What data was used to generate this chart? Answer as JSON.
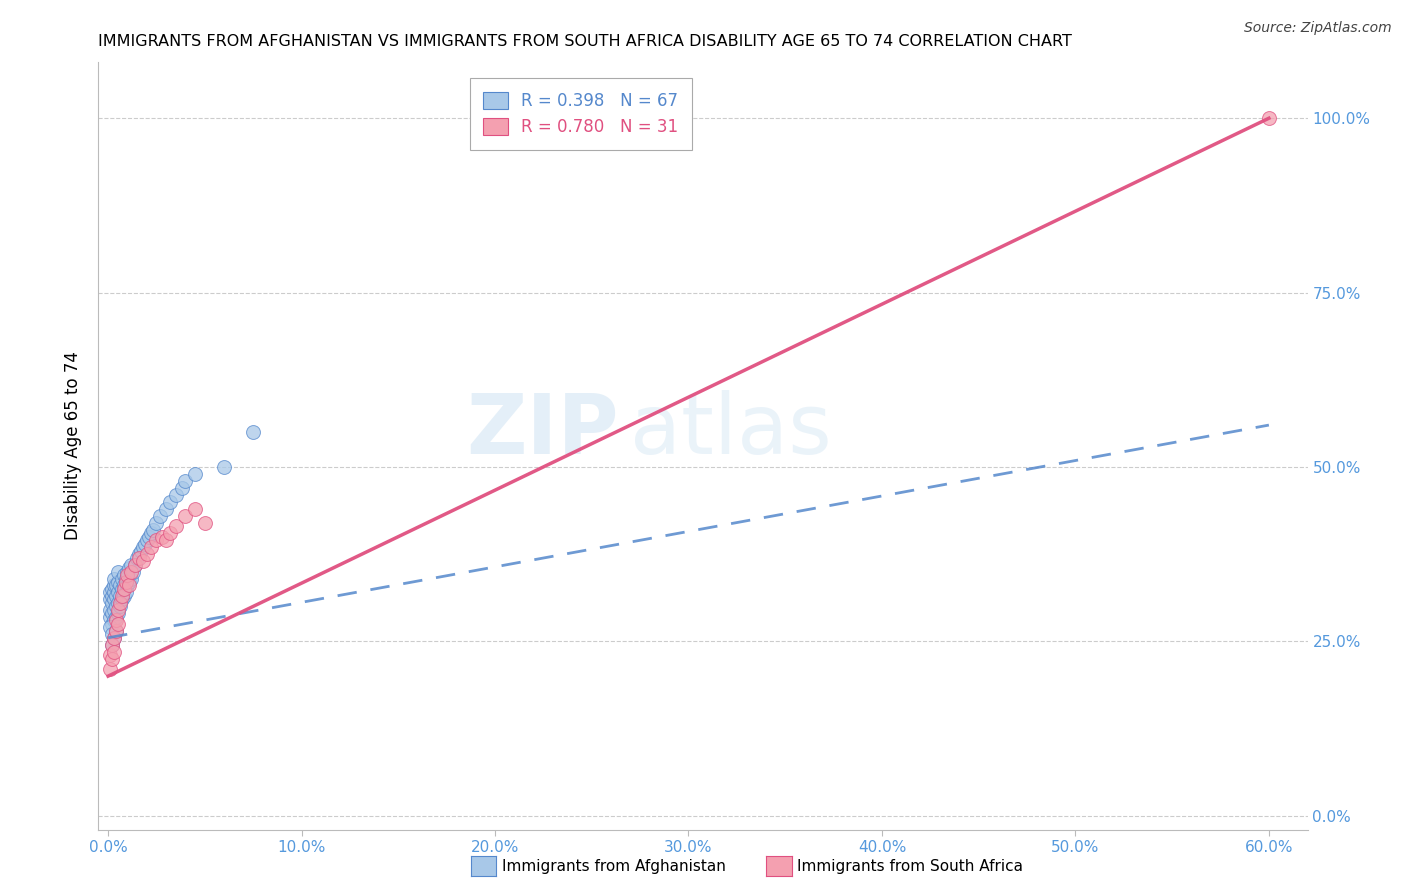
{
  "title": "IMMIGRANTS FROM AFGHANISTAN VS IMMIGRANTS FROM SOUTH AFRICA DISABILITY AGE 65 TO 74 CORRELATION CHART",
  "source": "Source: ZipAtlas.com",
  "xlabel_ticks": [
    "0.0%",
    "10.0%",
    "20.0%",
    "30.0%",
    "40.0%",
    "50.0%",
    "60.0%"
  ],
  "xlabel_vals": [
    0.0,
    0.1,
    0.2,
    0.3,
    0.4,
    0.5,
    0.6
  ],
  "ylabel_ticks": [
    "0.0%",
    "25.0%",
    "50.0%",
    "75.0%",
    "100.0%"
  ],
  "ylabel_vals": [
    0.0,
    0.25,
    0.5,
    0.75,
    1.0
  ],
  "xlim": [
    -0.005,
    0.62
  ],
  "ylim": [
    -0.02,
    1.08
  ],
  "ylabel": "Disability Age 65 to 74",
  "legend1_label": "Immigrants from Afghanistan",
  "legend2_label": "Immigrants from South Africa",
  "R_afghanistan": 0.398,
  "N_afghanistan": 67,
  "R_south_africa": 0.78,
  "N_south_africa": 31,
  "color_afghanistan": "#a8c8e8",
  "color_south_africa": "#f4a0b0",
  "line_afghanistan": "#5588cc",
  "line_south_africa": "#e05080",
  "watermark_zip": "ZIP",
  "watermark_atlas": "atlas",
  "afghanistan_x": [
    0.001,
    0.001,
    0.001,
    0.001,
    0.002,
    0.002,
    0.002,
    0.002,
    0.002,
    0.003,
    0.003,
    0.003,
    0.003,
    0.003,
    0.003,
    0.004,
    0.004,
    0.004,
    0.004,
    0.005,
    0.005,
    0.005,
    0.005,
    0.005,
    0.006,
    0.006,
    0.006,
    0.007,
    0.007,
    0.007,
    0.008,
    0.008,
    0.008,
    0.009,
    0.009,
    0.01,
    0.01,
    0.011,
    0.011,
    0.012,
    0.012,
    0.013,
    0.014,
    0.015,
    0.016,
    0.017,
    0.018,
    0.019,
    0.02,
    0.021,
    0.022,
    0.023,
    0.025,
    0.027,
    0.03,
    0.032,
    0.035,
    0.038,
    0.04,
    0.045,
    0.001,
    0.002,
    0.002,
    0.003,
    0.004,
    0.06,
    0.075
  ],
  "afghanistan_y": [
    0.285,
    0.295,
    0.31,
    0.32,
    0.275,
    0.29,
    0.305,
    0.315,
    0.325,
    0.28,
    0.295,
    0.31,
    0.32,
    0.33,
    0.34,
    0.285,
    0.3,
    0.315,
    0.33,
    0.29,
    0.305,
    0.32,
    0.335,
    0.35,
    0.3,
    0.315,
    0.33,
    0.31,
    0.325,
    0.34,
    0.315,
    0.33,
    0.345,
    0.32,
    0.34,
    0.33,
    0.35,
    0.335,
    0.355,
    0.34,
    0.36,
    0.35,
    0.36,
    0.37,
    0.375,
    0.38,
    0.385,
    0.39,
    0.395,
    0.4,
    0.405,
    0.41,
    0.42,
    0.43,
    0.44,
    0.45,
    0.46,
    0.47,
    0.48,
    0.49,
    0.27,
    0.26,
    0.245,
    0.255,
    0.265,
    0.5,
    0.55
  ],
  "south_africa_x": [
    0.001,
    0.001,
    0.002,
    0.002,
    0.003,
    0.003,
    0.004,
    0.004,
    0.005,
    0.005,
    0.006,
    0.007,
    0.008,
    0.009,
    0.01,
    0.011,
    0.012,
    0.014,
    0.016,
    0.018,
    0.02,
    0.022,
    0.025,
    0.028,
    0.03,
    0.032,
    0.035,
    0.04,
    0.045,
    0.05,
    0.6
  ],
  "south_africa_y": [
    0.23,
    0.21,
    0.245,
    0.225,
    0.255,
    0.235,
    0.265,
    0.28,
    0.275,
    0.295,
    0.305,
    0.315,
    0.325,
    0.335,
    0.345,
    0.33,
    0.35,
    0.36,
    0.37,
    0.365,
    0.375,
    0.385,
    0.395,
    0.4,
    0.395,
    0.405,
    0.415,
    0.43,
    0.44,
    0.42,
    1.0
  ],
  "blue_line_x": [
    0.0,
    0.6
  ],
  "blue_line_y": [
    0.255,
    0.56
  ],
  "pink_line_x": [
    0.0,
    0.6
  ],
  "pink_line_y": [
    0.2,
    1.0
  ]
}
